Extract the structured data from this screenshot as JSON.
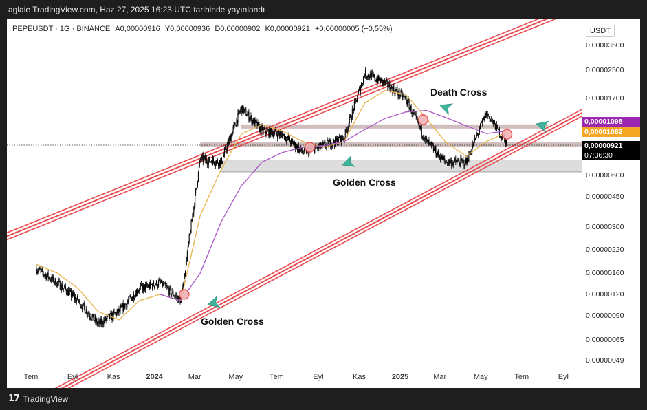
{
  "header": {
    "title": "aglaie TradingView.com, Haz 27, 2025 16:23 UTC tarihinde yayınlandı"
  },
  "legend": {
    "symbol": "PEPEUSDT",
    "interval": "1G",
    "exchange": "BINANCE",
    "open": "A0,00000916",
    "high": "Y0,00000936",
    "low": "D0,00000902",
    "close": "K0,00000921",
    "change": "+0,00000005 (+0,55%)"
  },
  "price_axis": {
    "unit": "USDT",
    "price_labels": [
      {
        "label": "0,00003500",
        "value": 3.5e-05,
        "color": "#ffffff"
      },
      {
        "label": "0,00002500",
        "value": 2.5e-05
      },
      {
        "label": "0,00001700",
        "value": 1.7e-05
      },
      {
        "label": "0,00000600",
        "value": 6e-06
      },
      {
        "label": "0,00000450",
        "value": 4.5e-06
      },
      {
        "label": "0,00000300",
        "value": 3e-06
      },
      {
        "label": "0,00000220",
        "value": 2.2e-06
      },
      {
        "label": "0,00000160",
        "value": 1.6e-06
      },
      {
        "label": "0,00000120",
        "value": 1.2e-06
      },
      {
        "label": "0,00000090",
        "value": 9e-07
      },
      {
        "label": "0,00000065",
        "value": 6.5e-07
      },
      {
        "label": "0,00000049",
        "value": 4.9e-07
      }
    ],
    "badges": [
      {
        "label": "0,00001098",
        "value": 1.098e-05,
        "color": "#9c27b0"
      },
      {
        "label": "0,00001082",
        "value": 1.082e-05,
        "color": "#f5a623"
      },
      {
        "label": "0,00000921",
        "value": 9.21e-06,
        "color": "#000000"
      }
    ],
    "countdown": "07:36:30"
  },
  "time_axis": {
    "labels": [
      "Tem",
      "Eyl",
      "Kas",
      "2024",
      "Mar",
      "May",
      "Tem",
      "Eyl",
      "Kas",
      "2025",
      "Mar",
      "May",
      "Tem",
      "Eyl"
    ]
  },
  "annotations": {
    "golden_cross_1": "Golden Cross",
    "golden_cross_2": "Golden Cross",
    "death_cross": "Death Cross"
  },
  "chart_data": {
    "type": "line",
    "title": "PEPEUSDT · 1G · BINANCE",
    "yscale": "log",
    "ylim": [
      4.9e-07,
      3.5e-05
    ],
    "x": [
      "2023-07",
      "2023-08",
      "2023-09",
      "2023-10",
      "2023-11",
      "2023-12",
      "2024-01",
      "2024-02",
      "2024-03",
      "2024-04",
      "2024-05",
      "2024-06",
      "2024-07",
      "2024-08",
      "2024-09",
      "2024-10",
      "2024-11",
      "2024-12",
      "2025-01",
      "2025-02",
      "2025-03",
      "2025-04",
      "2025-05",
      "2025-06"
    ],
    "series": [
      {
        "values": [
          1.7e-06,
          1.4e-06,
          1.1e-06,
          8e-07,
          9.5e-07,
          1.3e-06,
          1.4e-06,
          1.1e-06,
          7.5e-06,
          7.2e-06,
          1.5e-05,
          1.1e-05,
          1.05e-05,
          8.2e-06,
          9e-06,
          1e-05,
          2.4e-05,
          2.1e-05,
          1.7e-05,
          9.5e-06,
          7.2e-06,
          7.2e-06,
          1.4e-05,
          9.21e-06
        ]
      },
      {
        "values": [
          1.8e-06,
          1.6e-06,
          1.3e-06,
          9.5e-07,
          8.5e-07,
          1.1e-06,
          1.2e-06,
          1.1e-06,
          3.5e-06,
          6.5e-06,
          1.05e-05,
          1.2e-05,
          1.1e-05,
          9.5e-06,
          8.8e-06,
          9.5e-06,
          1.6e-05,
          1.9e-05,
          1.8e-05,
          1.3e-05,
          9.5e-06,
          7.8e-06,
          9.5e-06,
          1.082e-05
        ]
      },
      {
        "values": [
          null,
          null,
          null,
          null,
          null,
          null,
          1.2e-06,
          1.1e-06,
          1.6e-06,
          3.2e-06,
          5.2e-06,
          7.2e-06,
          8.2e-06,
          8.8e-06,
          9e-06,
          9.5e-06,
          1.12e-05,
          1.3e-05,
          1.42e-05,
          1.45e-05,
          1.32e-05,
          1.18e-05,
          1.06e-05,
          1.098e-05
        ]
      }
    ],
    "channel": {
      "upper": [
        [
          "2023-07",
          3.1e-06
        ],
        [
          "2025-05",
          3.6e-05
        ]
      ],
      "lower": [
        [
          "2023-07",
          2.8e-07
        ],
        [
          "2025-06",
          8.2e-06
        ]
      ]
    },
    "resistance_zone": [
      1.15e-05,
      1.2e-05
    ],
    "mid_zone": [
      9e-06,
      9.4e-06
    ],
    "support_zone": [
      6.3e-06,
      7.4e-06
    ]
  }
}
